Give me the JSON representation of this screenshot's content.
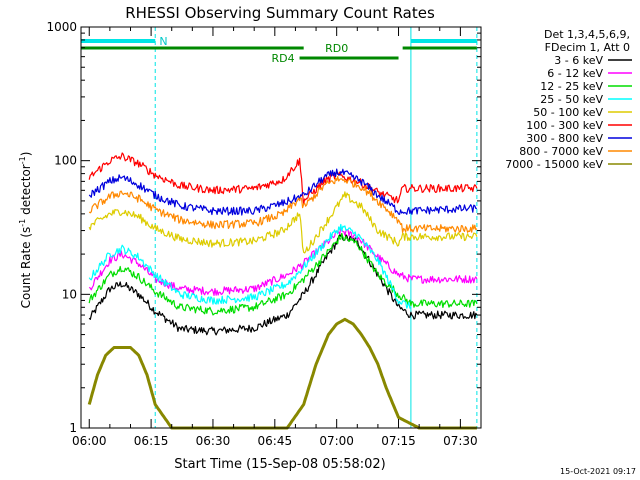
{
  "chart_data": {
    "type": "line",
    "title": "RHESSI Observing Summary Count Rates",
    "xlabel": "Start Time (15-Sep-08 05:58:02)",
    "ylabel_main": "Count Rate (s",
    "ylabel_sup1": "-1",
    "ylabel_mid": " detector",
    "ylabel_sup2": "-1",
    "ylabel_end": ")",
    "yscale": "log",
    "ylim": [
      1,
      1000
    ],
    "xlim": [
      "05:58",
      "07:35"
    ],
    "xticks": [
      "06:00",
      "06:15",
      "06:30",
      "06:45",
      "07:00",
      "07:15",
      "07:30"
    ],
    "yticks": [
      "1",
      "10",
      "100",
      "1000"
    ],
    "legend_header": [
      "Det 1,3,4,5,6,9,",
      "FDecim 1, Att 0"
    ],
    "legend_position": "right",
    "footer_date": "15-Oct-2021 09:17",
    "annotations": {
      "night_label": "N",
      "rd0_label": "RD0",
      "rd4_label": "RD4"
    },
    "markers": {
      "night": [
        [
          "05:58",
          "06:16"
        ],
        [
          "07:18",
          "07:34"
        ]
      ],
      "rd0": [
        [
          "05:58",
          "06:52"
        ],
        [
          "07:16",
          "07:34"
        ]
      ],
      "rd4": [
        [
          "06:51",
          "07:15"
        ]
      ],
      "vlines_dashed": [
        "06:16",
        "07:34"
      ],
      "vlines_solid": [
        "05:58",
        "07:18"
      ]
    },
    "series": [
      {
        "name": "3 - 6 keV",
        "color": "#000000",
        "x": [
          "06:00",
          "06:05",
          "06:08",
          "06:12",
          "06:16",
          "06:22",
          "06:30",
          "06:40",
          "06:48",
          "06:52",
          "06:58",
          "07:01",
          "07:05",
          "07:10",
          "07:15",
          "07:18",
          "07:25",
          "07:34"
        ],
        "y": [
          6.5,
          11,
          12,
          10,
          7.5,
          5.5,
          5.3,
          5.6,
          7,
          10,
          20,
          27,
          25,
          14,
          8,
          7,
          7,
          7
        ]
      },
      {
        "name": "6 - 12 keV",
        "color": "#ff00ff",
        "x": [
          "06:00",
          "06:05",
          "06:08",
          "06:12",
          "06:16",
          "06:22",
          "06:30",
          "06:40",
          "06:48",
          "06:52",
          "06:58",
          "07:01",
          "07:05",
          "07:10",
          "07:15",
          "07:18",
          "07:25",
          "07:34"
        ],
        "y": [
          11,
          18,
          20,
          17,
          13,
          11,
          10.5,
          11,
          14,
          17,
          25,
          30,
          27,
          19,
          14,
          13,
          13,
          13
        ]
      },
      {
        "name": "12 - 25 keV",
        "color": "#00dd00",
        "x": [
          "06:00",
          "06:05",
          "06:08",
          "06:12",
          "06:16",
          "06:22",
          "06:30",
          "06:40",
          "06:48",
          "06:52",
          "06:58",
          "07:01",
          "07:05",
          "07:10",
          "07:15",
          "07:18",
          "07:25",
          "07:34"
        ],
        "y": [
          9,
          14,
          16,
          13.5,
          10.5,
          8,
          7.5,
          8,
          10,
          13,
          21,
          27,
          24,
          14,
          10,
          8.5,
          8.5,
          8.5
        ]
      },
      {
        "name": "25 - 50 keV",
        "color": "#00ffff",
        "x": [
          "06:00",
          "06:05",
          "06:08",
          "06:12",
          "06:16",
          "06:22",
          "06:30",
          "06:40",
          "06:48",
          "06:52",
          "06:58",
          "07:01",
          "07:05",
          "07:10",
          "07:15",
          "07:18"
        ],
        "y": [
          13,
          20,
          22,
          19,
          14,
          10,
          9,
          9.5,
          12,
          16,
          26,
          32,
          28,
          18,
          9,
          8
        ]
      },
      {
        "name": "50 - 100 keV",
        "color": "#ddcc00",
        "x": [
          "06:00",
          "06:05",
          "06:08",
          "06:12",
          "06:16",
          "06:22",
          "06:30",
          "06:40",
          "06:47",
          "06:51",
          "06:52",
          "06:57",
          "07:00",
          "07:02",
          "07:06",
          "07:10",
          "07:15",
          "07:16",
          "07:25",
          "07:34"
        ],
        "y": [
          32,
          40,
          42,
          38,
          31,
          26,
          24,
          25,
          30,
          40,
          20,
          33,
          45,
          55,
          45,
          30,
          24,
          27,
          27,
          27
        ]
      },
      {
        "name": "100 - 300 keV",
        "color": "#ff0000",
        "x": [
          "06:00",
          "06:05",
          "06:08",
          "06:12",
          "06:16",
          "06:22",
          "06:30",
          "06:40",
          "06:47",
          "06:51",
          "06:52",
          "06:57",
          "07:00",
          "07:02",
          "07:06",
          "07:10",
          "07:15",
          "07:16",
          "07:25",
          "07:34"
        ],
        "y": [
          75,
          100,
          108,
          95,
          78,
          65,
          60,
          62,
          72,
          100,
          50,
          70,
          78,
          75,
          68,
          58,
          50,
          62,
          62,
          62
        ]
      },
      {
        "name": "300 - 800 keV",
        "color": "#0000dd",
        "x": [
          "06:00",
          "06:05",
          "06:08",
          "06:12",
          "06:16",
          "06:22",
          "06:30",
          "06:40",
          "06:47",
          "06:52",
          "06:57",
          "07:00",
          "07:02",
          "07:06",
          "07:10",
          "07:15",
          "07:18",
          "07:25",
          "07:34"
        ],
        "y": [
          55,
          70,
          75,
          66,
          55,
          46,
          42,
          42,
          48,
          55,
          75,
          82,
          80,
          70,
          55,
          42,
          42,
          43,
          44
        ]
      },
      {
        "name": "800 - 7000 keV",
        "color": "#ff8800",
        "x": [
          "06:00",
          "06:05",
          "06:08",
          "06:12",
          "06:16",
          "06:22",
          "06:30",
          "06:40",
          "06:47",
          "06:51",
          "06:52",
          "06:57",
          "07:00",
          "07:02",
          "07:06",
          "07:10",
          "07:15",
          "07:16",
          "07:25",
          "07:34"
        ],
        "y": [
          42,
          54,
          58,
          52,
          43,
          36,
          33,
          34,
          40,
          52,
          45,
          65,
          72,
          72,
          64,
          50,
          36,
          31,
          31,
          31
        ]
      },
      {
        "name": "7000 - 15000 keV",
        "color": "#888800",
        "x": [
          "06:00",
          "06:02",
          "06:04",
          "06:06",
          "06:08",
          "06:10",
          "06:12",
          "06:14",
          "06:16",
          "06:20",
          "06:30",
          "06:40",
          "06:48",
          "06:52",
          "06:55",
          "06:58",
          "07:00",
          "07:02",
          "07:04",
          "07:06",
          "07:08",
          "07:10",
          "07:12",
          "07:15",
          "07:20",
          "07:34"
        ],
        "y": [
          1.5,
          2.5,
          3.5,
          4,
          4,
          4,
          3.5,
          2.5,
          1.5,
          1,
          1,
          1,
          1,
          1.5,
          3,
          5,
          6,
          6.5,
          6,
          5,
          4,
          3,
          2,
          1.2,
          1,
          1
        ]
      }
    ]
  }
}
